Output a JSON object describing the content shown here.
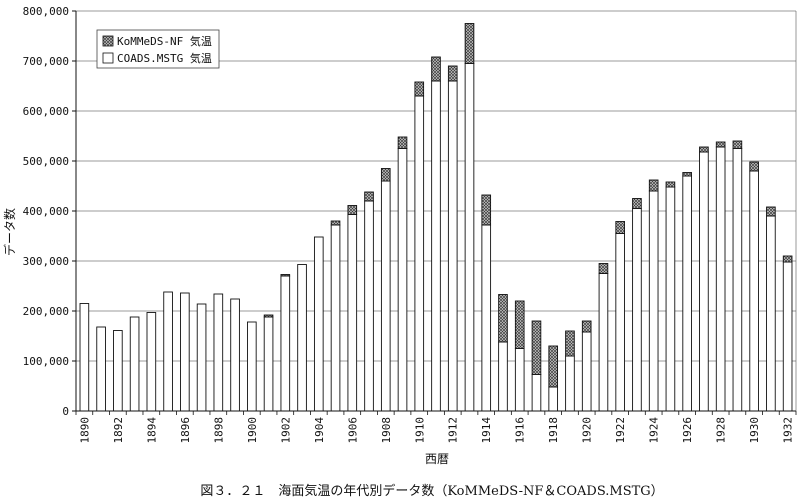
{
  "chart_data": {
    "type": "bar",
    "stacked": true,
    "caption": "図３．２１　海面気温の年代別データ数（KoMMeDS-NF＆COADS.MSTG）",
    "xlabel": "西暦",
    "ylabel": "データ数",
    "ylim": [
      0,
      800000
    ],
    "yticks": [
      "0",
      "100,000",
      "200,000",
      "300,000",
      "400,000",
      "500,000",
      "600,000",
      "700,000",
      "800,000"
    ],
    "ytick_values": [
      0,
      100000,
      200000,
      300000,
      400000,
      500000,
      600000,
      700000,
      800000
    ],
    "x": [
      1890,
      1891,
      1892,
      1893,
      1894,
      1895,
      1896,
      1897,
      1898,
      1899,
      1900,
      1901,
      1902,
      1903,
      1904,
      1905,
      1906,
      1907,
      1908,
      1909,
      1910,
      1911,
      1912,
      1913,
      1914,
      1915,
      1916,
      1917,
      1918,
      1919,
      1920,
      1921,
      1922,
      1923,
      1924,
      1925,
      1926,
      1927,
      1928,
      1929,
      1930,
      1931,
      1932
    ],
    "xtick_labels": [
      "1890",
      "1892",
      "1894",
      "1896",
      "1898",
      "1900",
      "1902",
      "1904",
      "1906",
      "1908",
      "1910",
      "1912",
      "1914",
      "1916",
      "1918",
      "1920",
      "1922",
      "1924",
      "1926",
      "1928",
      "1930",
      "1932"
    ],
    "grid": true,
    "legend_position": "top-left",
    "series": [
      {
        "name": "COADS.MSTG 気温",
        "pattern": "white",
        "values": [
          215000,
          168000,
          161000,
          188000,
          197000,
          238000,
          236000,
          214000,
          234000,
          224000,
          178000,
          188000,
          270000,
          293000,
          348000,
          372000,
          393000,
          420000,
          460000,
          525000,
          630000,
          660000,
          660000,
          695000,
          372000,
          138000,
          125000,
          73000,
          48000,
          110000,
          158000,
          275000,
          355000,
          405000,
          440000,
          448000,
          470000,
          518000,
          528000,
          525000,
          480000,
          390000,
          298000
        ]
      },
      {
        "name": "KoMMeDS-NF 気温",
        "pattern": "crosshatch",
        "values": [
          0,
          0,
          0,
          0,
          0,
          0,
          0,
          0,
          0,
          0,
          0,
          4000,
          3000,
          0,
          0,
          8000,
          18000,
          18000,
          25000,
          23000,
          28000,
          48000,
          30000,
          80000,
          60000,
          95000,
          95000,
          107000,
          82000,
          50000,
          22000,
          20000,
          24000,
          20000,
          22000,
          10000,
          7000,
          10000,
          10000,
          15000,
          18000,
          18000,
          12000
        ]
      }
    ]
  }
}
